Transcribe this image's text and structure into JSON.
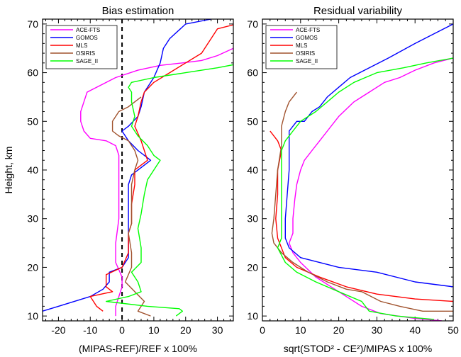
{
  "chart_data": [
    {
      "type": "line",
      "title": "Bias estimation",
      "xlabel": "(MIPAS-REF)/REF x 100%",
      "ylabel": "Height, km",
      "xlim": [
        -25,
        35
      ],
      "ylim": [
        9,
        71
      ],
      "xticks": [
        -20,
        -10,
        0,
        10,
        20,
        30
      ],
      "yticks": [
        10,
        20,
        30,
        40,
        50,
        60,
        70
      ],
      "reference_line": {
        "x": 0,
        "style": "dashed",
        "color": "#000000"
      },
      "legend_position": "top-left",
      "series": [
        {
          "name": "ACE-FTS",
          "color": "#ff00ff",
          "points": [
            [
              35,
              65
            ],
            [
              30,
              63.5
            ],
            [
              25,
              62.5
            ],
            [
              19,
              62
            ],
            [
              12,
              61.5
            ],
            [
              5,
              60.5
            ],
            [
              -2,
              59
            ],
            [
              -8,
              57
            ],
            [
              -11,
              56
            ],
            [
              -12,
              54
            ],
            [
              -13,
              52
            ],
            [
              -13,
              50
            ],
            [
              -12,
              48
            ],
            [
              -10,
              46.5
            ],
            [
              -5,
              46
            ],
            [
              -2,
              45
            ],
            [
              -1,
              43
            ],
            [
              -1,
              40
            ],
            [
              -1,
              35
            ],
            [
              -1,
              30
            ],
            [
              -2,
              25
            ],
            [
              -2,
              21
            ],
            [
              0,
              18
            ],
            [
              0,
              16
            ],
            [
              -1,
              14
            ],
            [
              -2,
              12
            ],
            [
              -2,
              10
            ]
          ]
        },
        {
          "name": "GOMOS",
          "color": "#0000ff",
          "points": [
            [
              28,
              71
            ],
            [
              20,
              70
            ],
            [
              15,
              67
            ],
            [
              13,
              65
            ],
            [
              12,
              62
            ],
            [
              10,
              59
            ],
            [
              7,
              56
            ],
            [
              6,
              53
            ],
            [
              5,
              51
            ],
            [
              2,
              49
            ],
            [
              0,
              48
            ],
            [
              2,
              46
            ],
            [
              5,
              44
            ],
            [
              8,
              42.5
            ],
            [
              9,
              42
            ],
            [
              6,
              40.5
            ],
            [
              3,
              39
            ],
            [
              2,
              37
            ],
            [
              2,
              32
            ],
            [
              2,
              27
            ],
            [
              2,
              22
            ],
            [
              0,
              20
            ],
            [
              -4,
              19
            ],
            [
              -4,
              17
            ],
            [
              -6,
              15.5
            ],
            [
              -10,
              14
            ],
            [
              -20,
              12
            ],
            [
              -30,
              10
            ]
          ]
        },
        {
          "name": "MLS",
          "color": "#ff0000",
          "points": [
            [
              36,
              70
            ],
            [
              30,
              69
            ],
            [
              25,
              64
            ],
            [
              20,
              62
            ],
            [
              15,
              60
            ],
            [
              10,
              58
            ],
            [
              7,
              56
            ],
            [
              6,
              54
            ],
            [
              5,
              51
            ],
            [
              4,
              49
            ],
            [
              6,
              46
            ],
            [
              7,
              44
            ],
            [
              8,
              42
            ],
            [
              6,
              41
            ],
            [
              4,
              40
            ],
            [
              4,
              37
            ],
            [
              3,
              33
            ],
            [
              3,
              29
            ],
            [
              2,
              27
            ],
            [
              2,
              23
            ],
            [
              0,
              20
            ],
            [
              -5,
              18.5
            ],
            [
              -5,
              16
            ],
            [
              -3,
              15
            ],
            [
              -10,
              14
            ],
            [
              -8,
              12
            ],
            [
              -6,
              11
            ]
          ]
        },
        {
          "name": "OSIRIS",
          "color": "#a0522d",
          "points": [
            [
              6,
              55
            ],
            [
              4,
              54
            ],
            [
              2,
              53
            ],
            [
              -1,
              52
            ],
            [
              -3,
              50
            ],
            [
              -3,
              48
            ],
            [
              -1,
              47
            ],
            [
              2,
              46
            ],
            [
              4,
              44
            ],
            [
              5,
              42
            ],
            [
              4,
              40
            ],
            [
              3,
              37
            ],
            [
              3,
              33
            ],
            [
              3,
              29
            ],
            [
              2,
              27
            ],
            [
              3,
              23
            ],
            [
              3,
              20
            ],
            [
              1,
              17
            ],
            [
              4,
              15
            ],
            [
              7,
              13
            ],
            [
              5,
              11
            ],
            [
              9,
              10
            ]
          ]
        },
        {
          "name": "SAGE_II",
          "color": "#00ff00",
          "points": [
            [
              38,
              62
            ],
            [
              30,
              61
            ],
            [
              20,
              60
            ],
            [
              10,
              59
            ],
            [
              3,
              58
            ],
            [
              2,
              57
            ],
            [
              3,
              56
            ],
            [
              3,
              54
            ],
            [
              4,
              51
            ],
            [
              3,
              49
            ],
            [
              5,
              47
            ],
            [
              8,
              45
            ],
            [
              10,
              43
            ],
            [
              12,
              42
            ],
            [
              10,
              40
            ],
            [
              8,
              38
            ],
            [
              7,
              35
            ],
            [
              6,
              31
            ],
            [
              5,
              28
            ],
            [
              6,
              24
            ],
            [
              6,
              21
            ],
            [
              3,
              19
            ],
            [
              5,
              17
            ],
            [
              6,
              15
            ],
            [
              2,
              14
            ],
            [
              -5,
              13
            ],
            [
              8,
              12
            ],
            [
              18,
              11.5
            ],
            [
              19,
              11
            ],
            [
              17,
              10
            ]
          ]
        }
      ]
    },
    {
      "type": "line",
      "title": "Residual variability",
      "xlabel": "sqrt(STOD² - CE²)/MIPAS x 100%",
      "ylabel": "",
      "xlim": [
        0,
        50
      ],
      "ylim": [
        9,
        71
      ],
      "xticks": [
        0,
        10,
        20,
        30,
        40,
        50
      ],
      "yticks": [
        10,
        20,
        30,
        40,
        50,
        60,
        70
      ],
      "legend_position": "top-left",
      "series": [
        {
          "name": "ACE-FTS",
          "color": "#ff00ff",
          "points": [
            [
              50,
              63
            ],
            [
              45,
              62
            ],
            [
              40,
              60.5
            ],
            [
              36,
              59
            ],
            [
              32,
              58
            ],
            [
              28,
              56
            ],
            [
              24,
              54
            ],
            [
              20,
              51
            ],
            [
              17,
              48
            ],
            [
              15,
              46
            ],
            [
              13,
              44
            ],
            [
              11,
              42
            ],
            [
              10,
              40
            ],
            [
              9,
              37
            ],
            [
              8.5,
              34
            ],
            [
              8,
              30
            ],
            [
              8,
              27
            ],
            [
              7,
              25
            ],
            [
              8,
              23
            ],
            [
              10,
              21
            ],
            [
              14,
              18
            ],
            [
              20,
              15
            ],
            [
              26,
              12
            ],
            [
              31,
              10.5
            ],
            [
              40,
              9.5
            ],
            [
              47,
              9
            ]
          ]
        },
        {
          "name": "GOMOS",
          "color": "#0000ff",
          "points": [
            [
              50,
              70
            ],
            [
              45,
              68
            ],
            [
              40,
              66
            ],
            [
              33,
              63
            ],
            [
              28,
              61
            ],
            [
              23,
              59
            ],
            [
              20,
              57
            ],
            [
              17,
              55
            ],
            [
              15,
              53
            ],
            [
              13,
              52
            ],
            [
              11,
              50
            ],
            [
              9,
              50
            ],
            [
              7,
              48
            ],
            [
              7,
              44
            ],
            [
              7,
              40
            ],
            [
              6.5,
              35
            ],
            [
              6,
              30
            ],
            [
              6,
              26
            ],
            [
              7,
              24
            ],
            [
              10,
              22
            ],
            [
              20,
              20
            ],
            [
              30,
              19
            ],
            [
              40,
              17
            ],
            [
              50,
              16
            ]
          ]
        },
        {
          "name": "MLS",
          "color": "#ff0000",
          "points": [
            [
              2,
              48
            ],
            [
              4,
              46
            ],
            [
              5,
              44
            ],
            [
              4,
              40
            ],
            [
              4,
              35
            ],
            [
              3.5,
              30
            ],
            [
              4,
              26
            ],
            [
              6,
              22
            ],
            [
              9,
              20
            ],
            [
              15,
              18
            ],
            [
              22,
              16
            ],
            [
              30,
              14.5
            ],
            [
              40,
              13.5
            ],
            [
              50,
              13
            ]
          ]
        },
        {
          "name": "OSIRIS",
          "color": "#a0522d",
          "points": [
            [
              9,
              56
            ],
            [
              7,
              54
            ],
            [
              6,
              52
            ],
            [
              5,
              49
            ],
            [
              5,
              45
            ],
            [
              4,
              40
            ],
            [
              3.5,
              35
            ],
            [
              3,
              30
            ],
            [
              2.5,
              27
            ],
            [
              3,
              25
            ],
            [
              5,
              23
            ],
            [
              8,
              21
            ],
            [
              12,
              19
            ],
            [
              17,
              17
            ],
            [
              22,
              15.5
            ],
            [
              26,
              15
            ],
            [
              31,
              13
            ],
            [
              36,
              12
            ],
            [
              42,
              11
            ],
            [
              50,
              11
            ]
          ]
        },
        {
          "name": "SAGE_II",
          "color": "#00ff00",
          "points": [
            [
              50,
              63
            ],
            [
              43,
              62
            ],
            [
              37,
              61
            ],
            [
              30,
              60
            ],
            [
              24,
              58
            ],
            [
              20,
              56
            ],
            [
              17,
              54
            ],
            [
              14,
              52
            ],
            [
              10,
              50
            ],
            [
              8,
              48
            ],
            [
              6,
              46
            ],
            [
              5,
              44
            ],
            [
              5,
              40
            ],
            [
              5,
              35
            ],
            [
              5,
              30
            ],
            [
              5,
              26
            ],
            [
              4,
              24
            ],
            [
              6,
              21
            ],
            [
              9,
              19
            ],
            [
              14,
              17
            ],
            [
              20,
              15
            ],
            [
              26,
              13
            ],
            [
              28,
              11
            ],
            [
              35,
              10
            ],
            [
              45,
              9.3
            ]
          ]
        }
      ]
    }
  ]
}
